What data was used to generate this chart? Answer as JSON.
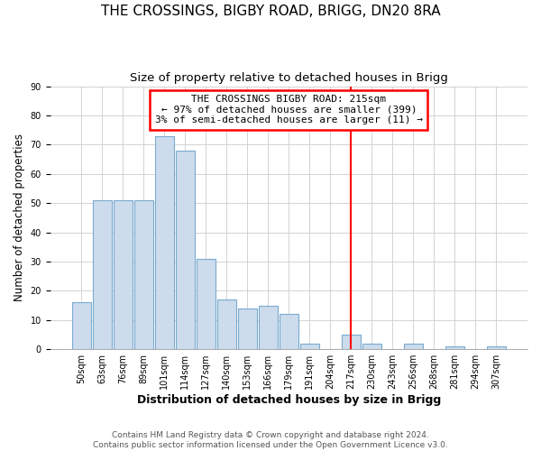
{
  "title": "THE CROSSINGS, BIGBY ROAD, BRIGG, DN20 8RA",
  "subtitle": "Size of property relative to detached houses in Brigg",
  "xlabel": "Distribution of detached houses by size in Brigg",
  "ylabel": "Number of detached properties",
  "bar_labels": [
    "50sqm",
    "63sqm",
    "76sqm",
    "89sqm",
    "101sqm",
    "114sqm",
    "127sqm",
    "140sqm",
    "153sqm",
    "166sqm",
    "179sqm",
    "191sqm",
    "204sqm",
    "217sqm",
    "230sqm",
    "243sqm",
    "256sqm",
    "268sqm",
    "281sqm",
    "294sqm",
    "307sqm"
  ],
  "bar_values": [
    16,
    51,
    51,
    51,
    73,
    68,
    31,
    17,
    14,
    15,
    12,
    2,
    0,
    5,
    2,
    0,
    2,
    0,
    1,
    0,
    1
  ],
  "bar_color": "#ccdcec",
  "bar_edge_color": "#7aaad0",
  "vline_x": 13,
  "vline_color": "red",
  "annotation_title": "THE CROSSINGS BIGBY ROAD: 215sqm",
  "annotation_line1": "← 97% of detached houses are smaller (399)",
  "annotation_line2": "3% of semi-detached houses are larger (11) →",
  "annotation_box_color": "white",
  "annotation_box_edge_color": "red",
  "ylim": [
    0,
    90
  ],
  "yticks": [
    0,
    10,
    20,
    30,
    40,
    50,
    60,
    70,
    80,
    90
  ],
  "footer1": "Contains HM Land Registry data © Crown copyright and database right 2024.",
  "footer2": "Contains public sector information licensed under the Open Government Licence v3.0.",
  "title_fontsize": 11,
  "subtitle_fontsize": 9.5,
  "xlabel_fontsize": 9,
  "ylabel_fontsize": 8.5,
  "tick_fontsize": 7,
  "annotation_fontsize": 8,
  "footer_fontsize": 6.5
}
